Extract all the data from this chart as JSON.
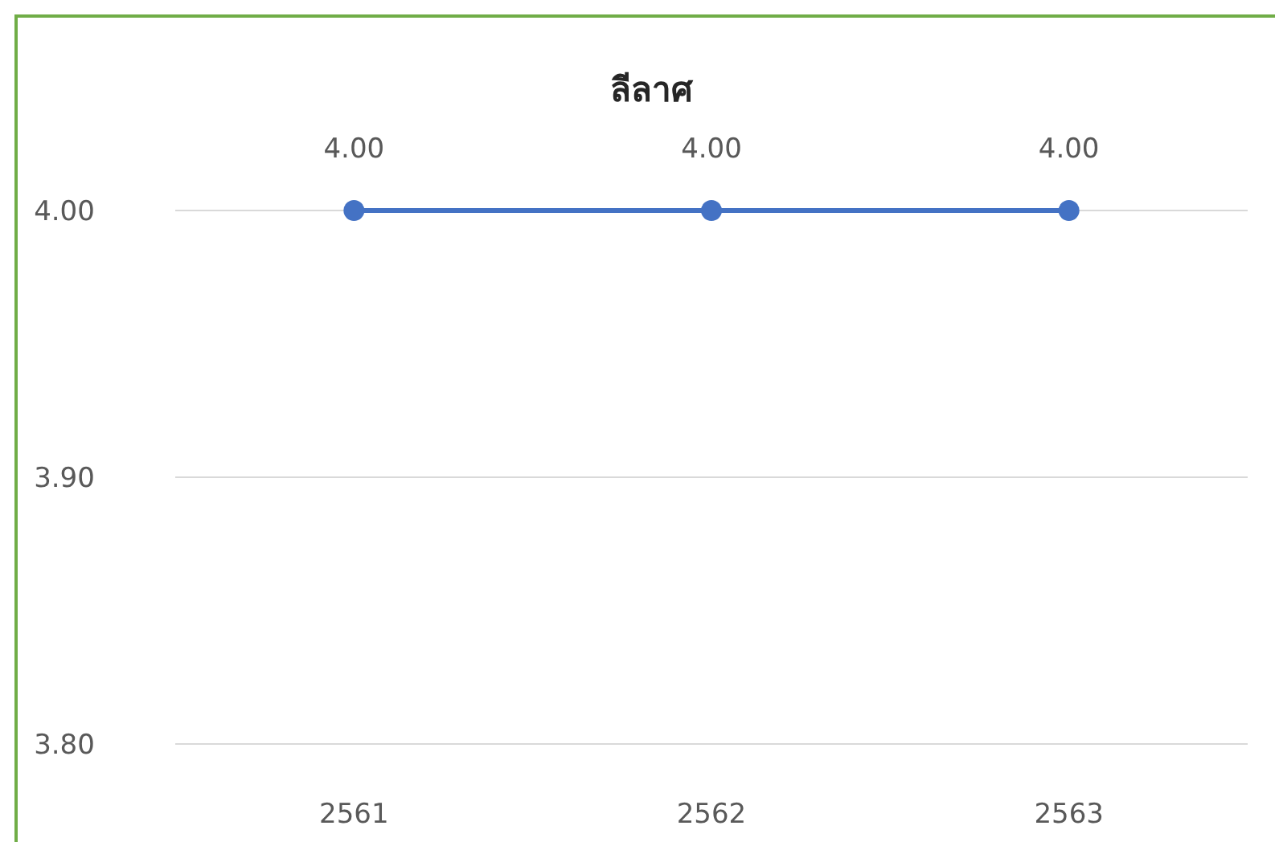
{
  "chart_data": {
    "type": "line",
    "title": "ลีลาศ",
    "categories": [
      "2561",
      "2562",
      "2563"
    ],
    "series": [
      {
        "color": "#4472c4",
        "values": [
          4,
          4,
          4
        ]
      }
    ],
    "value_labels": [
      "4.00",
      "4.00",
      "4.00"
    ],
    "ylim": [
      3.8,
      4.0
    ],
    "yticks": [
      {
        "value": 3.8,
        "label": "3.80"
      },
      {
        "value": 3.9,
        "label": "3.90"
      },
      {
        "value": 4.0,
        "label": "4.00"
      }
    ],
    "grid": "y",
    "marker": "circle",
    "line_style": "solid"
  }
}
